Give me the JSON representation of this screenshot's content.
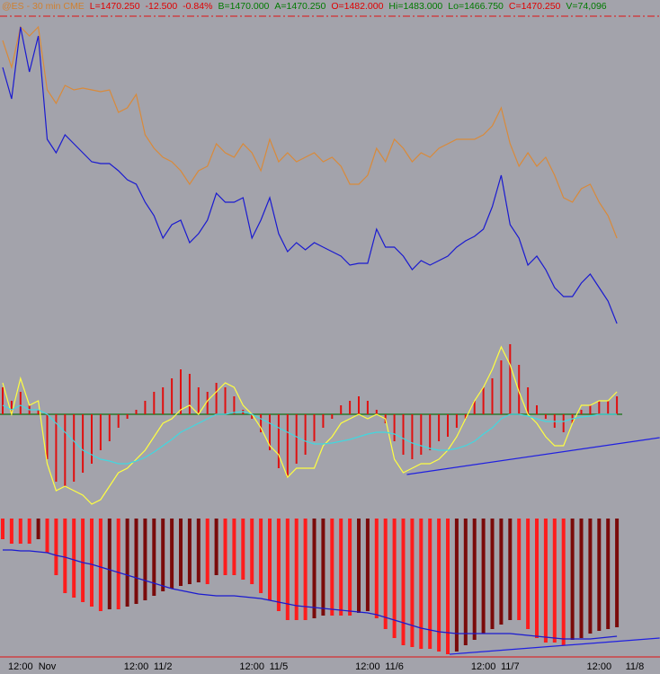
{
  "header": [
    {
      "text": "@ES - 30 min CME",
      "color": "#d08030"
    },
    {
      "text": "L=1470.250",
      "color": "#e00000"
    },
    {
      "text": "-12.500",
      "color": "#e00000"
    },
    {
      "text": "-0.84%",
      "color": "#e00000"
    },
    {
      "text": "B=1470.000",
      "color": "#007a00"
    },
    {
      "text": "A=1470.250",
      "color": "#007a00"
    },
    {
      "text": "O=1482.000",
      "color": "#e00000"
    },
    {
      "text": "Hi=1483.000",
      "color": "#007a00"
    },
    {
      "text": "Lo=1466.750",
      "color": "#007a00"
    },
    {
      "text": "C=1470.250",
      "color": "#e00000"
    },
    {
      "text": "V=74,096",
      "color": "#007a00"
    }
  ],
  "chart_data": [
    {
      "type": "line",
      "ylim": [
        0,
        400
      ],
      "series": [
        {
          "type": "line",
          "color": "#d98a3a",
          "values": [
            355,
            325,
            370,
            360,
            370,
            300,
            285,
            305,
            300,
            302,
            300,
            298,
            300,
            275,
            280,
            295,
            250,
            235,
            225,
            220,
            210,
            195,
            210,
            215,
            240,
            230,
            225,
            240,
            230,
            210,
            245,
            220,
            230,
            220,
            225,
            230,
            220,
            225,
            215,
            195,
            195,
            205,
            235,
            220,
            245,
            235,
            220,
            230,
            225,
            235,
            240,
            245,
            245,
            245,
            250,
            260,
            280,
            240,
            215,
            230,
            215,
            225,
            205,
            180,
            175,
            190,
            195,
            175,
            160,
            135,
            null,
            null
          ]
        },
        {
          "type": "line",
          "color": "#1a1ad0",
          "values": [
            325,
            290,
            370,
            320,
            360,
            245,
            230,
            250,
            240,
            230,
            220,
            218,
            218,
            210,
            200,
            195,
            175,
            160,
            135,
            150,
            155,
            130,
            140,
            155,
            185,
            175,
            175,
            180,
            135,
            155,
            180,
            140,
            120,
            130,
            122,
            130,
            125,
            120,
            115,
            105,
            107,
            107,
            145,
            125,
            125,
            115,
            100,
            110,
            105,
            110,
            115,
            125,
            132,
            137,
            145,
            170,
            205,
            150,
            135,
            105,
            115,
            100,
            80,
            70,
            70,
            85,
            95,
            80,
            65,
            40,
            null,
            null
          ]
        }
      ]
    },
    {
      "type": "macd",
      "ylim": [
        -110,
        80
      ],
      "zero_color": "#2a7a2a",
      "series": [
        {
          "type": "bar",
          "color": "#e01010",
          "values": [
            30,
            15,
            25,
            10,
            5,
            -50,
            -75,
            -80,
            -75,
            -65,
            -55,
            -40,
            -30,
            -15,
            -5,
            5,
            15,
            25,
            30,
            40,
            50,
            45,
            30,
            25,
            35,
            30,
            20,
            5,
            -5,
            -20,
            -40,
            -60,
            -70,
            -55,
            -45,
            -30,
            -15,
            -5,
            10,
            15,
            20,
            15,
            5,
            -10,
            -30,
            -45,
            -50,
            -45,
            -40,
            -30,
            -25,
            -15,
            -5,
            15,
            30,
            40,
            60,
            78,
            55,
            30,
            10,
            -5,
            -15,
            -20,
            -10,
            5,
            10,
            15,
            15,
            20,
            null,
            null
          ]
        },
        {
          "type": "line",
          "color": "#ffff40",
          "values": [
            35,
            0,
            40,
            10,
            15,
            -55,
            -85,
            -80,
            -85,
            -90,
            -100,
            -95,
            -80,
            -65,
            -60,
            -50,
            -40,
            -25,
            -10,
            -5,
            5,
            10,
            0,
            15,
            25,
            35,
            30,
            10,
            0,
            -15,
            -35,
            -45,
            -70,
            -60,
            -60,
            -60,
            -35,
            -25,
            -10,
            -5,
            0,
            -5,
            0,
            -5,
            -50,
            -65,
            -60,
            -55,
            -55,
            -50,
            -40,
            -25,
            -5,
            15,
            30,
            50,
            75,
            55,
            25,
            0,
            -10,
            -25,
            -35,
            -35,
            -10,
            10,
            10,
            15,
            15,
            25,
            null,
            null
          ]
        },
        {
          "type": "line",
          "color": "#40d8e0",
          "values": [
            10,
            5,
            10,
            5,
            5,
            0,
            -10,
            -20,
            -30,
            -40,
            -45,
            -50,
            -52,
            -55,
            -55,
            -52,
            -48,
            -42,
            -35,
            -28,
            -20,
            -15,
            -10,
            -5,
            0,
            0,
            2,
            3,
            0,
            -5,
            -10,
            -15,
            -20,
            -25,
            -30,
            -33,
            -33,
            -32,
            -30,
            -28,
            -25,
            -22,
            -20,
            -20,
            -22,
            -27,
            -32,
            -35,
            -38,
            -40,
            -40,
            -38,
            -35,
            -30,
            -22,
            -15,
            -5,
            0,
            0,
            -2,
            -5,
            -8,
            -8,
            -8,
            -5,
            -3,
            -2,
            0,
            0,
            0,
            null,
            null
          ]
        }
      ],
      "trendlines": [
        {
          "x": [
            45.4,
            73.8
          ],
          "values": [
            -67,
            -26
          ],
          "color": "#2020e0"
        }
      ]
    },
    {
      "type": "bar",
      "ylim": [
        -160,
        0
      ],
      "up_color": "#ff1c1c",
      "down_color": "#7a0a0a",
      "categories": [
        null,
        null,
        "12:00",
        null,
        null,
        "Nov",
        null,
        null,
        null,
        null,
        null,
        null,
        null,
        null,
        null,
        "12:00",
        null,
        null,
        "11/2",
        null,
        null,
        null,
        null,
        null,
        null,
        null,
        null,
        null,
        "12:00",
        null,
        null,
        "11/5",
        null,
        null,
        null,
        null,
        null,
        null,
        null,
        null,
        null,
        "12:00",
        null,
        null,
        "11/6",
        null,
        null,
        null,
        null,
        null,
        null,
        null,
        null,
        null,
        "12:00",
        null,
        null,
        "11/7",
        null,
        null,
        null,
        null,
        null,
        null,
        null,
        null,
        null,
        "12:00",
        null,
        null,
        null,
        "11/8"
      ],
      "series": [
        {
          "type": "bar",
          "values": [
            -23,
            -28,
            -28,
            -28,
            -23,
            -38,
            -63,
            -83,
            -88,
            -93,
            -98,
            -103,
            -101,
            -101,
            -98,
            -95,
            -91,
            -86,
            -81,
            -78,
            -75,
            -73,
            -71,
            -73,
            -63,
            -63,
            -63,
            -68,
            -73,
            -83,
            -91,
            -103,
            -113,
            -113,
            -113,
            -111,
            -108,
            -108,
            -108,
            -108,
            -105,
            -103,
            -111,
            -123,
            -133,
            -141,
            -143,
            -145,
            -145,
            -148,
            -151,
            -148,
            -141,
            -135,
            -128,
            -123,
            -118,
            -113,
            -113,
            -123,
            -133,
            -138,
            -138,
            -141,
            -135,
            -133,
            -128,
            -125,
            -123,
            -121,
            null,
            null
          ]
        },
        {
          "type": "line",
          "color": "#1a1ad0",
          "values": [
            -35,
            -35,
            -36,
            -36,
            -37,
            -38,
            -41,
            -43,
            -46,
            -49,
            -51,
            -54,
            -57,
            -60,
            -63,
            -66,
            -69,
            -72,
            -75,
            -78,
            -80,
            -82,
            -84,
            -85,
            -86,
            -86,
            -86,
            -87,
            -88,
            -89,
            -91,
            -93,
            -95,
            -97,
            -98,
            -99,
            -100,
            -101,
            -102,
            -103,
            -104,
            -105,
            -107,
            -110,
            -113,
            -116,
            -119,
            -122,
            -124,
            -126,
            -127,
            -128,
            -128,
            -128,
            -128,
            -128,
            -128,
            -128,
            -129,
            -130,
            -131,
            -132,
            -133,
            -134,
            -134,
            -134,
            -134,
            -133,
            -132,
            -131,
            null,
            null
          ]
        }
      ],
      "trendlines": [
        {
          "x": [
            50.2,
            73.8
          ],
          "values": [
            -151,
            -133
          ],
          "color": "#2020e0"
        }
      ]
    }
  ]
}
